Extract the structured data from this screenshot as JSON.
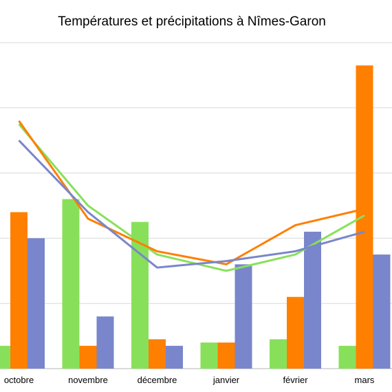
{
  "chart_data": {
    "type": "bar",
    "title": "Températures et précipitations à Nîmes-Garon",
    "categories": [
      "octobre",
      "novembre",
      "décembre",
      "janvier",
      "février",
      "mars"
    ],
    "ylim": [
      0,
      100
    ],
    "grid": true,
    "legend": "none",
    "bar_series": [
      {
        "color": "#88e05a",
        "values": [
          7,
          52,
          45,
          8,
          9,
          7
        ]
      },
      {
        "color": "#ff7f00",
        "values": [
          48,
          7,
          9,
          8,
          22,
          93
        ]
      },
      {
        "color": "#7986cb",
        "values": [
          40,
          16,
          7,
          32,
          42,
          35
        ]
      }
    ],
    "line_series": [
      {
        "color": "#88e05a",
        "values": [
          75,
          50,
          35,
          30,
          35,
          47
        ]
      },
      {
        "color": "#ff7f00",
        "values": [
          76,
          46,
          36,
          32,
          44,
          49
        ]
      },
      {
        "color": "#7986cb",
        "values": [
          70,
          48,
          31,
          33,
          36,
          42
        ]
      }
    ]
  }
}
